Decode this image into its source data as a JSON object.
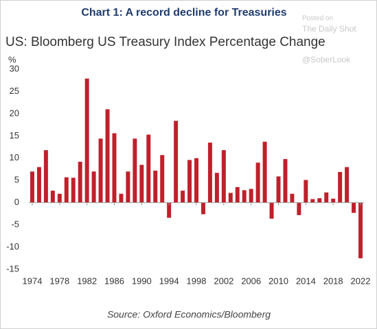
{
  "chart_data": {
    "type": "bar",
    "title": "Chart 1: A record decline for Treasuries",
    "subtitle": "US: Bloomberg US Treasury Index Percentage Change",
    "y_label": "%",
    "source": "Source: Oxford Economics/Bloomberg",
    "watermark": [
      "Posted on",
      "The Daily Shot",
      "@SoberLook"
    ],
    "x": [
      1974,
      1975,
      1976,
      1977,
      1978,
      1979,
      1980,
      1981,
      1982,
      1983,
      1984,
      1985,
      1986,
      1987,
      1988,
      1989,
      1990,
      1991,
      1992,
      1993,
      1994,
      1995,
      1996,
      1997,
      1998,
      1999,
      2000,
      2001,
      2002,
      2003,
      2004,
      2005,
      2006,
      2007,
      2008,
      2009,
      2010,
      2011,
      2012,
      2013,
      2014,
      2015,
      2016,
      2017,
      2018,
      2019,
      2020,
      2021,
      2022
    ],
    "values": [
      7.0,
      8.0,
      11.8,
      2.7,
      2.0,
      5.7,
      5.6,
      9.2,
      27.9,
      7.0,
      14.4,
      21.0,
      15.6,
      2.0,
      7.0,
      14.4,
      8.5,
      15.3,
      7.2,
      10.7,
      -3.4,
      18.4,
      2.7,
      9.6,
      10.0,
      -2.6,
      13.5,
      6.7,
      11.8,
      2.2,
      3.5,
      2.8,
      3.1,
      9.0,
      13.7,
      -3.6,
      5.9,
      9.8,
      2.0,
      -2.8,
      5.1,
      0.8,
      1.0,
      2.3,
      0.9,
      6.9,
      8.0,
      -2.3,
      -12.5
    ],
    "color": "#c0202b",
    "xlim": [
      1973.5,
      2022.5
    ],
    "xticks": [
      1974,
      1978,
      1982,
      1986,
      1990,
      1994,
      1998,
      2002,
      2006,
      2010,
      2014,
      2018,
      2022
    ],
    "ylim": [
      -15,
      30
    ],
    "yticks": [
      30,
      25,
      20,
      15,
      10,
      5,
      0,
      -5,
      -10,
      -15
    ],
    "grid": false
  }
}
